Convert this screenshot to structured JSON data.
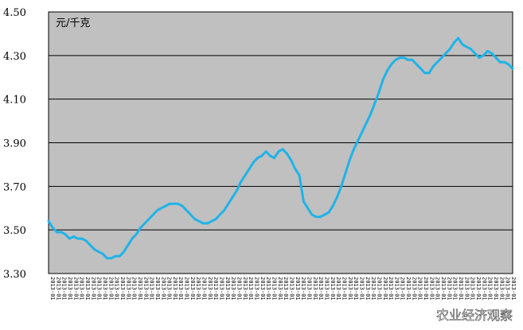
{
  "chart_data": {
    "type": "line",
    "unit_label": "元/千克",
    "ylim": [
      3.3,
      4.5
    ],
    "yticks": [
      "4.50",
      "4.30",
      "4.10",
      "3.90",
      "3.70",
      "3.50",
      "3.30"
    ],
    "x_tick_label": "2013-01",
    "grid": true,
    "legend": "none",
    "colors": {
      "plot_bg": "#c0c0c0",
      "line": "#1fb3e8",
      "grid": "#000000"
    },
    "series": [
      {
        "values": [
          3.54,
          3.51,
          3.49,
          3.49,
          3.48,
          3.46,
          3.47,
          3.46,
          3.46,
          3.45,
          3.43,
          3.41,
          3.4,
          3.39,
          3.37,
          3.37,
          3.38,
          3.38,
          3.4,
          3.43,
          3.46,
          3.48,
          3.51,
          3.53,
          3.55,
          3.57,
          3.59,
          3.6,
          3.61,
          3.62,
          3.62,
          3.62,
          3.61,
          3.59,
          3.57,
          3.55,
          3.54,
          3.53,
          3.53,
          3.54,
          3.55,
          3.57,
          3.59,
          3.62,
          3.65,
          3.68,
          3.72,
          3.75,
          3.78,
          3.81,
          3.83,
          3.84,
          3.86,
          3.84,
          3.83,
          3.86,
          3.87,
          3.85,
          3.82,
          3.78,
          3.75,
          3.63,
          3.6,
          3.57,
          3.56,
          3.56,
          3.57,
          3.58,
          3.61,
          3.65,
          3.7,
          3.76,
          3.82,
          3.87,
          3.91,
          3.95,
          3.99,
          4.03,
          4.08,
          4.13,
          4.19,
          4.23,
          4.26,
          4.28,
          4.29,
          4.29,
          4.28,
          4.28,
          4.26,
          4.24,
          4.22,
          4.22,
          4.25,
          4.27,
          4.29,
          4.31,
          4.33,
          4.36,
          4.38,
          4.35,
          4.34,
          4.33,
          4.31,
          4.29,
          4.3,
          4.32,
          4.31,
          4.29,
          4.27,
          4.27,
          4.26,
          4.24
        ]
      }
    ]
  },
  "watermark": "农业经济观察"
}
